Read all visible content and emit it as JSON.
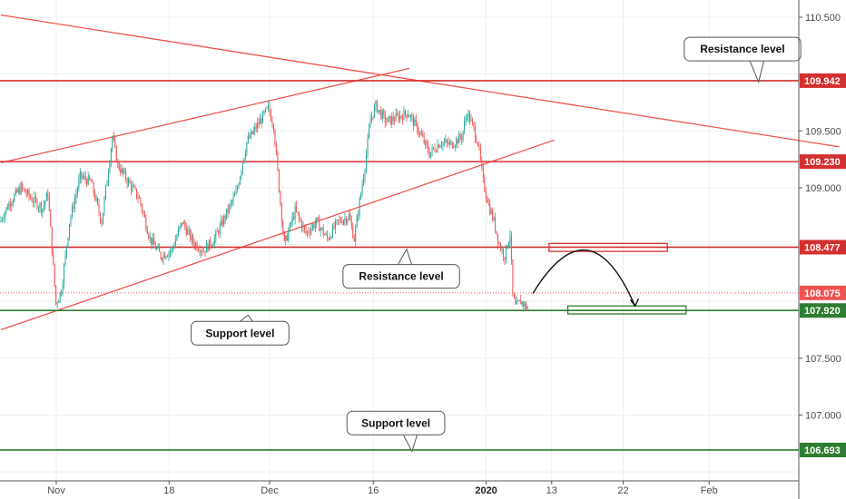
{
  "chart_data": {
    "type": "line",
    "subtype": "candlestick",
    "ylim": [
      106.35,
      110.6
    ],
    "y_ticks": [
      "110.500",
      "109.500",
      "109.000",
      "107.500",
      "107.000"
    ],
    "x_ticks": [
      "Nov",
      "18",
      "Dec",
      "16",
      "2020",
      "13",
      "22",
      "Feb"
    ],
    "x_ticks_bold": [
      "2020"
    ],
    "price_series": {
      "color_up": "#26a69a",
      "color_down": "#ef5350",
      "anchors": [
        [
          0,
          108.7
        ],
        [
          2,
          108.88
        ],
        [
          4,
          109.0
        ],
        [
          6,
          108.9
        ],
        [
          8,
          108.82
        ],
        [
          9,
          108.95
        ],
        [
          10,
          108.3
        ],
        [
          10.5,
          107.98
        ],
        [
          11.5,
          108.1
        ],
        [
          13,
          108.7
        ],
        [
          15,
          109.1
        ],
        [
          17,
          109.05
        ],
        [
          19,
          108.7
        ],
        [
          21,
          109.45
        ],
        [
          22,
          109.2
        ],
        [
          24,
          109.05
        ],
        [
          26,
          108.9
        ],
        [
          28,
          108.55
        ],
        [
          30,
          108.4
        ],
        [
          32,
          108.45
        ],
        [
          34,
          108.7
        ],
        [
          36,
          108.52
        ],
        [
          38,
          108.45
        ],
        [
          40,
          108.55
        ],
        [
          42,
          108.75
        ],
        [
          44,
          108.95
        ],
        [
          46,
          109.4
        ],
        [
          48,
          109.55
        ],
        [
          50,
          109.7
        ],
        [
          51,
          109.55
        ],
        [
          52,
          109.0
        ],
        [
          53,
          108.5
        ],
        [
          55,
          108.8
        ],
        [
          57,
          108.6
        ],
        [
          59,
          108.7
        ],
        [
          61,
          108.55
        ],
        [
          63,
          108.7
        ],
        [
          65,
          108.75
        ],
        [
          66,
          108.55
        ],
        [
          68,
          109.2
        ],
        [
          69,
          109.6
        ],
        [
          70,
          109.72
        ],
        [
          72,
          109.58
        ],
        [
          74,
          109.62
        ],
        [
          76,
          109.66
        ],
        [
          78,
          109.5
        ],
        [
          80,
          109.3
        ],
        [
          82,
          109.4
        ],
        [
          84,
          109.38
        ],
        [
          86,
          109.45
        ],
        [
          87,
          109.66
        ],
        [
          88,
          109.55
        ],
        [
          89,
          109.4
        ],
        [
          90,
          109.05
        ],
        [
          91,
          108.85
        ],
        [
          92,
          108.7
        ],
        [
          93,
          108.5
        ],
        [
          94,
          108.4
        ],
        [
          95,
          108.6
        ],
        [
          95.5,
          108.05
        ],
        [
          96,
          107.95
        ],
        [
          97,
          108.0
        ],
        [
          98,
          107.95
        ]
      ]
    },
    "horizontal_levels": [
      {
        "price": 109.942,
        "label": "109.942",
        "color": "#d32f2f"
      },
      {
        "price": 109.23,
        "label": "109.230",
        "color": "#d32f2f"
      },
      {
        "price": 108.477,
        "label": "108.477",
        "color": "#d32f2f"
      },
      {
        "price": 107.92,
        "label": "107.920",
        "color": "#2e7d32"
      },
      {
        "price": 106.693,
        "label": "106.693",
        "color": "#2e7d32"
      }
    ],
    "current_price": {
      "price": 108.075,
      "label": "108.075",
      "color": "#ef5350"
    },
    "trendlines": [
      {
        "name": "descending",
        "color": "#ef5350",
        "p1": [
          0,
          110.52
        ],
        "p2": [
          156,
          109.36
        ]
      },
      {
        "name": "channel-upper",
        "color": "#ef5350",
        "p1": [
          0,
          109.22
        ],
        "p2": [
          76,
          110.05
        ]
      },
      {
        "name": "channel-lower",
        "color": "#ef5350",
        "p1": [
          0,
          107.75
        ],
        "p2": [
          103,
          109.42
        ]
      }
    ],
    "zones": [
      {
        "name": "resistance-zone",
        "color": "#d32f2f",
        "x1": 102,
        "x2": 124,
        "y1": 108.51,
        "y2": 108.44
      },
      {
        "name": "support-zone",
        "color": "#2e7d32",
        "x1": 105.5,
        "x2": 127.5,
        "y1": 107.96,
        "y2": 107.89
      }
    ],
    "projection_arc": {
      "start": [
        99,
        108.07
      ],
      "peak": [
        109,
        108.45
      ],
      "end": [
        118,
        107.96
      ],
      "color": "#111111"
    },
    "annotations": [
      {
        "text": "Resistance level",
        "x": 138,
        "y": 110.22,
        "target": [
          141,
          109.93
        ]
      },
      {
        "text": "Resistance level",
        "x": 74.5,
        "y": 108.22,
        "target": [
          75.5,
          108.46
        ]
      },
      {
        "text": "Support level",
        "x": 44.5,
        "y": 107.72,
        "target": [
          46,
          107.88
        ]
      },
      {
        "text": "Support level",
        "x": 73.5,
        "y": 106.93,
        "target": [
          76.5,
          106.68
        ]
      }
    ],
    "grid": true
  }
}
